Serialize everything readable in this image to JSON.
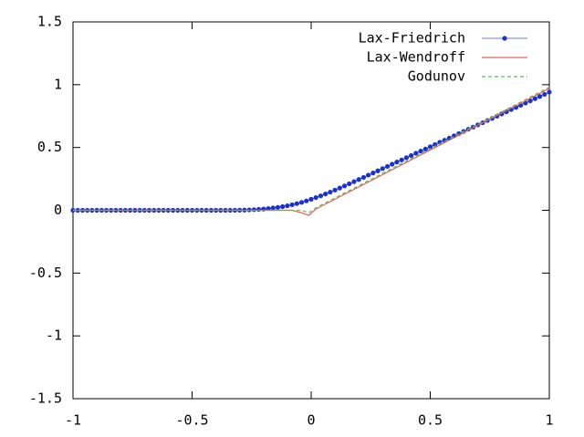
{
  "chart_data": {
    "type": "line",
    "xlim": [
      -1,
      1
    ],
    "ylim": [
      -1.5,
      1.5
    ],
    "xticks": [
      -1,
      -0.5,
      0,
      0.5,
      1
    ],
    "yticks": [
      -1.5,
      -1,
      -0.5,
      0,
      0.5,
      1,
      1.5
    ],
    "grid": false,
    "legend": "top-right",
    "series": [
      {
        "name": "Lax-Friedrich",
        "color": "#1a2fd6",
        "markers": true,
        "x": [
          -1,
          -0.98,
          -0.96,
          -0.94,
          -0.92,
          -0.9,
          -0.88,
          -0.86,
          -0.84,
          -0.82,
          -0.8,
          -0.78,
          -0.76,
          -0.74,
          -0.72,
          -0.7,
          -0.68,
          -0.66,
          -0.64,
          -0.62,
          -0.6,
          -0.58,
          -0.56,
          -0.54,
          -0.52,
          -0.5,
          -0.48,
          -0.46,
          -0.44,
          -0.42,
          -0.4,
          -0.38,
          -0.36,
          -0.34,
          -0.32,
          -0.3,
          -0.28,
          -0.26,
          -0.24,
          -0.22,
          -0.2,
          -0.18,
          -0.16,
          -0.14,
          -0.12,
          -0.1,
          -0.08,
          -0.06,
          -0.04,
          -0.02,
          0,
          0.02,
          0.04,
          0.06,
          0.08,
          0.1,
          0.12,
          0.14,
          0.16,
          0.18,
          0.2,
          0.22,
          0.24,
          0.26,
          0.28,
          0.3,
          0.32,
          0.34,
          0.36,
          0.38,
          0.4,
          0.42,
          0.44,
          0.46,
          0.48,
          0.5,
          0.52,
          0.54,
          0.56,
          0.58,
          0.6,
          0.62,
          0.64,
          0.66,
          0.68,
          0.7,
          0.72,
          0.74,
          0.76,
          0.78,
          0.8,
          0.82,
          0.84,
          0.86,
          0.88,
          0.9,
          0.92,
          0.94,
          0.96,
          0.98,
          1
        ],
        "values": [
          0,
          0,
          0,
          0,
          0,
          0,
          0,
          0,
          0,
          0,
          0,
          0,
          0,
          0,
          0,
          0,
          0,
          0,
          0,
          0,
          0,
          0,
          0,
          0,
          0,
          0,
          0,
          0,
          0,
          0,
          0,
          0,
          0,
          0,
          0,
          0.001,
          0.002,
          0.003,
          0.005,
          0.007,
          0.01,
          0.014,
          0.018,
          0.023,
          0.029,
          0.036,
          0.044,
          0.053,
          0.063,
          0.075,
          0.088,
          0.101,
          0.115,
          0.13,
          0.145,
          0.161,
          0.177,
          0.194,
          0.211,
          0.228,
          0.245,
          0.262,
          0.28,
          0.297,
          0.314,
          0.332,
          0.349,
          0.367,
          0.384,
          0.401,
          0.419,
          0.436,
          0.454,
          0.471,
          0.488,
          0.506,
          0.523,
          0.541,
          0.558,
          0.575,
          0.593,
          0.61,
          0.628,
          0.645,
          0.662,
          0.68,
          0.697,
          0.715,
          0.732,
          0.749,
          0.767,
          0.784,
          0.802,
          0.819,
          0.836,
          0.854,
          0.871,
          0.889,
          0.906,
          0.923,
          0.941
        ]
      },
      {
        "name": "Lax-Wendroff",
        "color": "#e8605a",
        "markers": false,
        "x": [
          -1,
          -0.08,
          -0.04,
          -0.01,
          0.02,
          1
        ],
        "values": [
          0,
          0,
          -0.02,
          -0.04,
          0.01,
          0.97
        ]
      },
      {
        "name": "Godunov",
        "color": "#52c452",
        "markers": false,
        "dashed": true,
        "x": [
          -1,
          -0.04,
          -0.01,
          0.02,
          1
        ],
        "values": [
          0,
          0,
          -0.02,
          0.02,
          0.98
        ]
      }
    ]
  }
}
